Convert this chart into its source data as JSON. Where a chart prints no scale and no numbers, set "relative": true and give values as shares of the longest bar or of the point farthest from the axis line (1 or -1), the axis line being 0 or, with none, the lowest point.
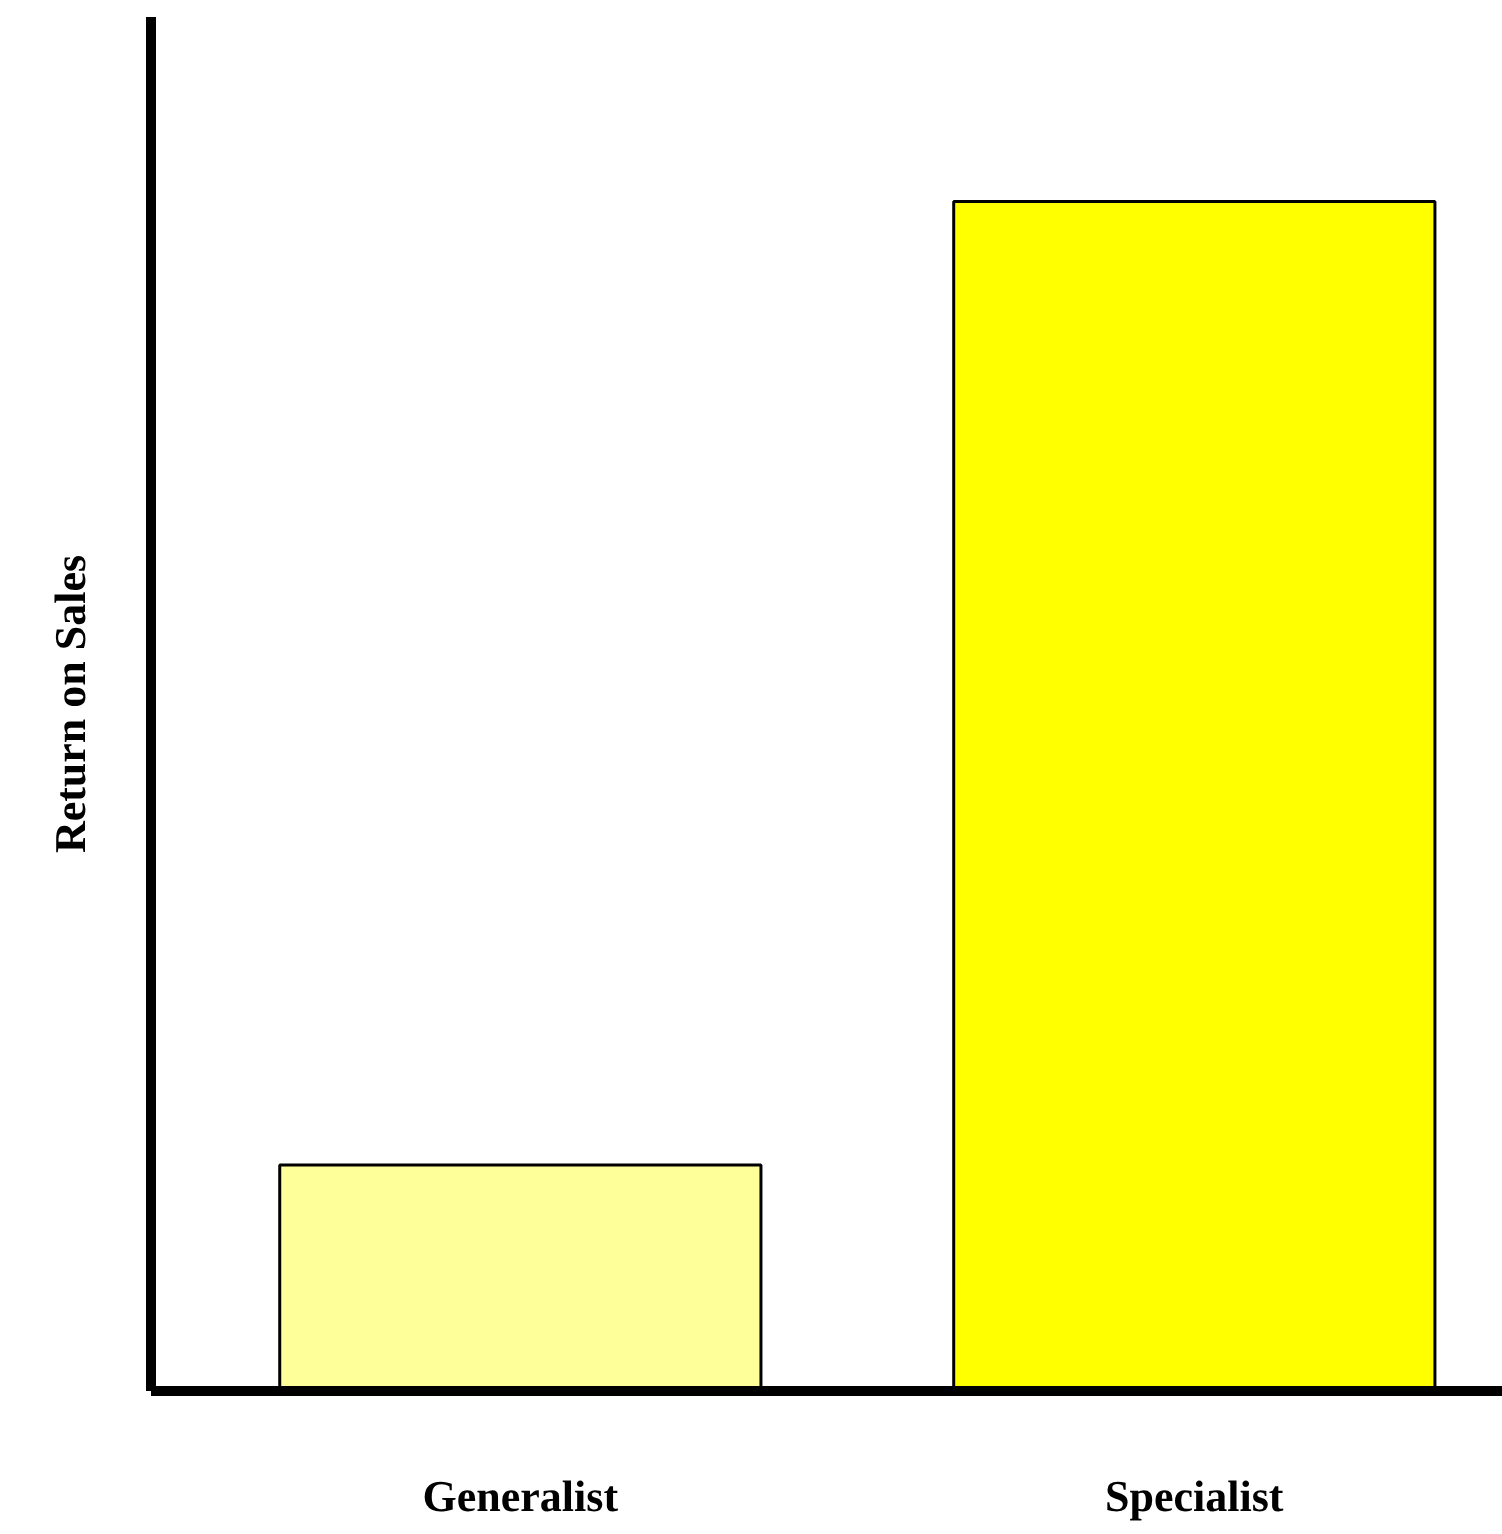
{
  "chart_data": {
    "type": "bar",
    "ylabel": "Return on Sales",
    "categories": [
      "Generalist",
      "Specialist"
    ],
    "relative": true,
    "colors": [
      "#ffff99",
      "#ffff00"
    ],
    "values": [
      0.19,
      1.0
    ],
    "grid": false
  }
}
